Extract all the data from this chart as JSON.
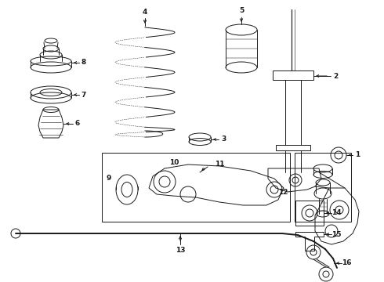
{
  "bg_color": "#ffffff",
  "line_color": "#1a1a1a",
  "fig_width": 4.9,
  "fig_height": 3.6,
  "dpi": 100,
  "lw": 0.7,
  "label_fontsize": 6.5,
  "arrow_fontsize": 6.5
}
